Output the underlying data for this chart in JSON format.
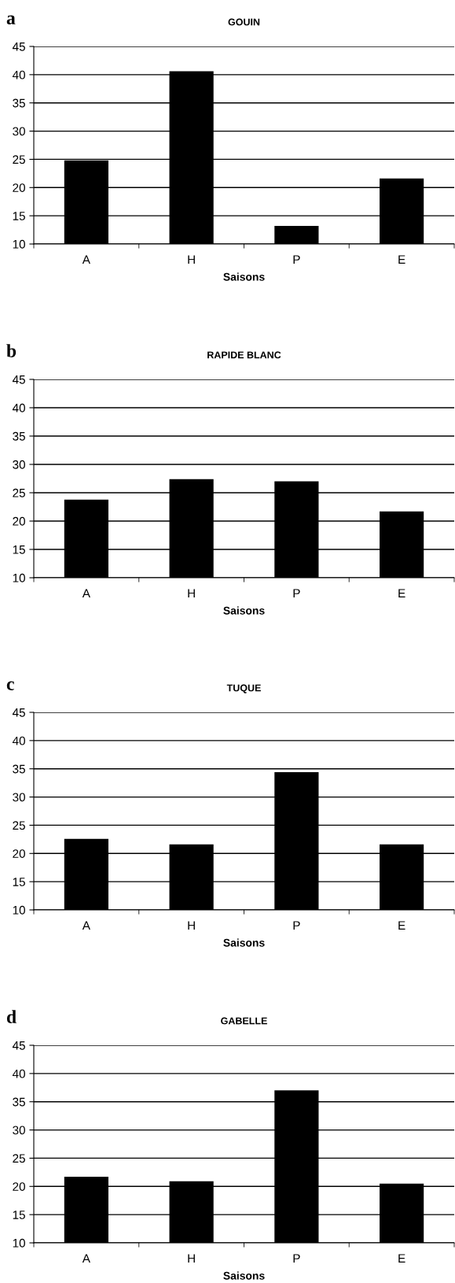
{
  "chart_data": [
    {
      "type": "bar",
      "title": "GOUIN",
      "xlabel": "Saisons",
      "annotations": [
        "a"
      ],
      "categories": [
        "A",
        "H",
        "P",
        "E"
      ],
      "values": [
        24.8,
        40.6,
        13.2,
        21.6
      ],
      "color": "#000000",
      "ylim": [
        10,
        45
      ],
      "yticks": [
        10,
        15,
        20,
        25,
        30,
        35,
        40,
        45
      ],
      "grid": "y",
      "legend": false
    },
    {
      "type": "bar",
      "title": "RAPIDE BLANC",
      "xlabel": "Saisons",
      "annotations": [
        "b"
      ],
      "categories": [
        "A",
        "H",
        "P",
        "E"
      ],
      "values": [
        23.8,
        27.4,
        27.0,
        21.7
      ],
      "color": "#000000",
      "ylim": [
        10,
        45
      ],
      "yticks": [
        10,
        15,
        20,
        25,
        30,
        35,
        40,
        45
      ],
      "grid": "y",
      "legend": false
    },
    {
      "type": "bar",
      "title": "TUQUE",
      "xlabel": "Saisons",
      "annotations": [
        "c"
      ],
      "categories": [
        "A",
        "H",
        "P",
        "E"
      ],
      "values": [
        22.6,
        21.6,
        34.4,
        21.6
      ],
      "color": "#000000",
      "ylim": [
        10,
        45
      ],
      "yticks": [
        10,
        15,
        20,
        25,
        30,
        35,
        40,
        45
      ],
      "grid": "y",
      "legend": false
    },
    {
      "type": "bar",
      "title": "GABELLE",
      "xlabel": "Saisons",
      "annotations": [
        "d"
      ],
      "categories": [
        "A",
        "H",
        "P",
        "E"
      ],
      "values": [
        21.7,
        20.9,
        37.0,
        20.5
      ],
      "color": "#000000",
      "ylim": [
        10,
        45
      ],
      "yticks": [
        10,
        15,
        20,
        25,
        30,
        35,
        40,
        45
      ],
      "grid": "y",
      "legend": false
    }
  ]
}
